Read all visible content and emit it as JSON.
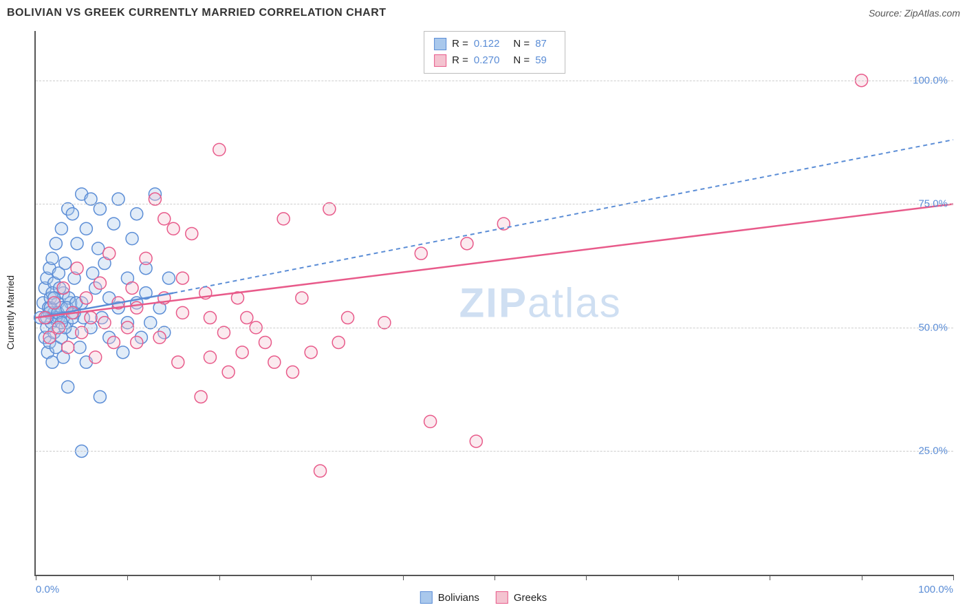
{
  "title": "BOLIVIAN VS GREEK CURRENTLY MARRIED CORRELATION CHART",
  "source_prefix": "Source: ",
  "source_name": "ZipAtlas.com",
  "y_axis_label": "Currently Married",
  "watermark_bold": "ZIP",
  "watermark_thin": "atlas",
  "chart": {
    "type": "scatter",
    "background_color": "#ffffff",
    "grid_color": "#cccccc",
    "axis_color": "#555555",
    "label_color": "#5b8dd6",
    "xlim": [
      0,
      100
    ],
    "ylim": [
      0,
      110
    ],
    "y_ticks": [
      25,
      50,
      75,
      100
    ],
    "y_tick_labels": [
      "25.0%",
      "50.0%",
      "75.0%",
      "100.0%"
    ],
    "x_ticks": [
      0,
      10,
      20,
      30,
      40,
      50,
      60,
      70,
      80,
      90,
      100
    ],
    "x_tick_labels_shown": {
      "0": "0.0%",
      "100": "100.0%"
    },
    "marker_radius": 9,
    "marker_stroke_width": 1.5,
    "marker_fill_opacity": 0.35,
    "series": [
      {
        "name": "Bolivians",
        "color_fill": "#a9c8ec",
        "color_stroke": "#5b8dd6",
        "R": "0.122",
        "N": "87",
        "trend": {
          "solid_from": [
            0,
            52
          ],
          "solid_to": [
            15,
            57
          ],
          "dash_to": [
            100,
            88
          ],
          "width": 2.5,
          "dash": "6,5"
        },
        "points": [
          [
            0.5,
            52
          ],
          [
            0.8,
            55
          ],
          [
            1,
            48
          ],
          [
            1,
            58
          ],
          [
            1.2,
            50
          ],
          [
            1.2,
            60
          ],
          [
            1.3,
            45
          ],
          [
            1.4,
            54
          ],
          [
            1.5,
            62
          ],
          [
            1.5,
            47
          ],
          [
            1.6,
            56
          ],
          [
            1.7,
            51
          ],
          [
            1.8,
            64
          ],
          [
            1.8,
            43
          ],
          [
            2,
            53
          ],
          [
            2,
            59
          ],
          [
            2,
            49
          ],
          [
            2.2,
            67
          ],
          [
            2.2,
            46
          ],
          [
            2.4,
            55
          ],
          [
            2.5,
            52
          ],
          [
            2.5,
            61
          ],
          [
            2.8,
            70
          ],
          [
            2.8,
            48
          ],
          [
            3,
            57
          ],
          [
            3,
            44
          ],
          [
            3.2,
            63
          ],
          [
            3.4,
            51
          ],
          [
            3.5,
            74
          ],
          [
            3.5,
            38
          ],
          [
            3.8,
            55
          ],
          [
            4,
            73
          ],
          [
            4,
            49
          ],
          [
            4.2,
            60
          ],
          [
            4.5,
            67
          ],
          [
            4.8,
            46
          ],
          [
            5,
            55
          ],
          [
            5,
            77
          ],
          [
            5.2,
            52
          ],
          [
            5.5,
            70
          ],
          [
            5.5,
            43
          ],
          [
            6,
            76
          ],
          [
            6,
            50
          ],
          [
            6.2,
            61
          ],
          [
            6.5,
            58
          ],
          [
            6.8,
            66
          ],
          [
            7,
            74
          ],
          [
            7,
            36
          ],
          [
            7.2,
            52
          ],
          [
            7.5,
            63
          ],
          [
            8,
            56
          ],
          [
            8,
            48
          ],
          [
            8.5,
            71
          ],
          [
            9,
            54
          ],
          [
            9,
            76
          ],
          [
            9.5,
            45
          ],
          [
            10,
            60
          ],
          [
            10,
            51
          ],
          [
            10.5,
            68
          ],
          [
            11,
            55
          ],
          [
            11,
            73
          ],
          [
            11.5,
            48
          ],
          [
            12,
            62
          ],
          [
            12,
            57
          ],
          [
            12.5,
            51
          ],
          [
            13,
            77
          ],
          [
            13.5,
            54
          ],
          [
            14,
            49
          ],
          [
            14.5,
            60
          ],
          [
            5,
            25
          ],
          [
            1.5,
            53
          ],
          [
            2.2,
            52
          ],
          [
            2.8,
            54
          ],
          [
            3.2,
            50
          ],
          [
            3.6,
            56
          ],
          [
            4.2,
            53
          ],
          [
            1.8,
            57
          ],
          [
            2.6,
            58
          ],
          [
            3.0,
            52
          ],
          [
            1.2,
            52
          ],
          [
            1.6,
            54
          ],
          [
            2.0,
            56
          ],
          [
            2.4,
            53
          ],
          [
            2.8,
            51
          ],
          [
            3.4,
            54
          ],
          [
            4.0,
            52
          ],
          [
            4.4,
            55
          ]
        ]
      },
      {
        "name": "Greeks",
        "color_fill": "#f4c3d0",
        "color_stroke": "#e85a8a",
        "R": "0.270",
        "N": "59",
        "trend": {
          "solid_from": [
            0,
            52
          ],
          "solid_to": [
            100,
            75
          ],
          "dash_to": null,
          "width": 2.5,
          "dash": null
        },
        "points": [
          [
            1,
            52
          ],
          [
            1.5,
            48
          ],
          [
            2,
            55
          ],
          [
            2.5,
            50
          ],
          [
            3,
            58
          ],
          [
            3.5,
            46
          ],
          [
            4,
            53
          ],
          [
            4.5,
            62
          ],
          [
            5,
            49
          ],
          [
            5.5,
            56
          ],
          [
            6,
            52
          ],
          [
            6.5,
            44
          ],
          [
            7,
            59
          ],
          [
            7.5,
            51
          ],
          [
            8,
            65
          ],
          [
            8.5,
            47
          ],
          [
            9,
            55
          ],
          [
            10,
            50
          ],
          [
            10.5,
            58
          ],
          [
            11,
            54
          ],
          [
            12,
            64
          ],
          [
            13,
            76
          ],
          [
            13.5,
            48
          ],
          [
            14,
            56
          ],
          [
            15,
            70
          ],
          [
            15.5,
            43
          ],
          [
            16,
            53
          ],
          [
            17,
            69
          ],
          [
            18,
            36
          ],
          [
            18.5,
            57
          ],
          [
            19,
            44
          ],
          [
            20,
            86
          ],
          [
            20.5,
            49
          ],
          [
            21,
            41
          ],
          [
            22,
            56
          ],
          [
            22.5,
            45
          ],
          [
            23,
            52
          ],
          [
            24,
            50
          ],
          [
            25,
            47
          ],
          [
            26,
            43
          ],
          [
            27,
            72
          ],
          [
            28,
            41
          ],
          [
            29,
            56
          ],
          [
            30,
            45
          ],
          [
            31,
            21
          ],
          [
            32,
            74
          ],
          [
            33,
            47
          ],
          [
            34,
            52
          ],
          [
            38,
            51
          ],
          [
            42,
            65
          ],
          [
            43,
            31
          ],
          [
            47,
            67
          ],
          [
            48,
            27
          ],
          [
            51,
            71
          ],
          [
            90,
            100
          ],
          [
            14,
            72
          ],
          [
            16,
            60
          ],
          [
            19,
            52
          ],
          [
            11,
            47
          ]
        ]
      }
    ]
  },
  "stats_labels": {
    "R": "R =",
    "N": "N ="
  },
  "legend": [
    {
      "label": "Bolivians",
      "fill": "#a9c8ec",
      "stroke": "#5b8dd6"
    },
    {
      "label": "Greeks",
      "fill": "#f4c3d0",
      "stroke": "#e85a8a"
    }
  ]
}
